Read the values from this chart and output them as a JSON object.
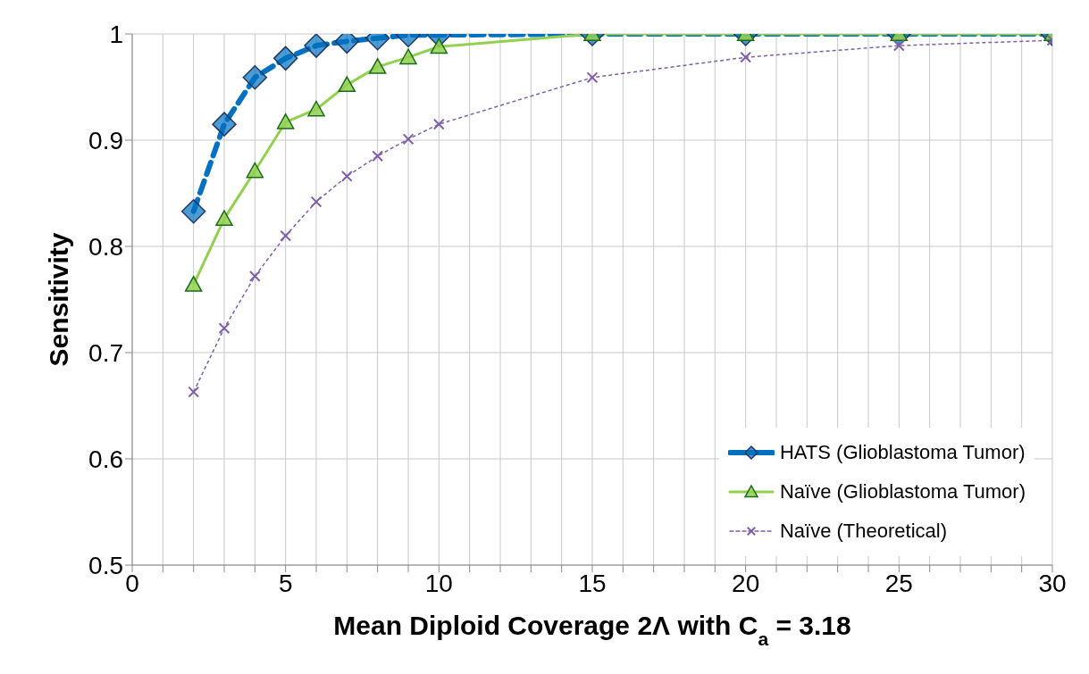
{
  "chart_data": {
    "type": "line",
    "xlabel": "Mean Diploid Coverage 2Λ with C$_{a}$ = 3.18",
    "ylabel": "Sensitivity",
    "x": [
      2,
      3,
      4,
      5,
      6,
      7,
      8,
      9,
      10,
      15,
      20,
      25,
      30
    ],
    "series": [
      {
        "name": "HATS (Glioblastoma Tumor)",
        "color": "#0070c0",
        "marker": "diamond",
        "line_style": "dashed",
        "values": [
          0.833,
          0.915,
          0.959,
          0.977,
          0.989,
          0.993,
          0.996,
          0.999,
          0.999,
          1,
          1,
          1,
          1
        ]
      },
      {
        "name": "Naïve (Glioblastoma Tumor)",
        "color": "#92d050",
        "marker": "triangle",
        "line_style": "solid",
        "values": [
          0.764,
          0.826,
          0.871,
          0.917,
          0.929,
          0.952,
          0.969,
          0.978,
          0.988,
          1,
          1,
          1,
          1
        ]
      },
      {
        "name": "Naïve (Theoretical)",
        "color": "#7f5fa8",
        "marker": "cross",
        "line_style": "dotted",
        "values": [
          0.663,
          0.723,
          0.772,
          0.81,
          0.842,
          0.866,
          0.885,
          0.901,
          0.915,
          0.959,
          0.978,
          0.989,
          0.994
        ]
      }
    ],
    "xlim": [
      0,
      30
    ],
    "xticks": [
      0,
      {
        "value": 1,
        "label": null
      },
      {
        "value": 2,
        "label": null
      },
      {
        "value": 3,
        "label": null
      },
      {
        "value": 4,
        "label": null
      },
      5,
      {
        "value": 6,
        "label": null
      },
      {
        "value": 7,
        "label": null
      },
      {
        "value": 8,
        "label": null
      },
      {
        "value": 9,
        "label": null
      },
      10,
      {
        "value": 11,
        "label": null
      },
      {
        "value": 12,
        "label": null
      },
      {
        "value": 13,
        "label": null
      },
      {
        "value": 14,
        "label": null
      },
      15,
      {
        "value": 16,
        "label": null
      },
      {
        "value": 17,
        "label": null
      },
      {
        "value": 18,
        "label": null
      },
      {
        "value": 19,
        "label": null
      },
      20,
      {
        "value": 21,
        "label": null
      },
      {
        "value": 22,
        "label": null
      },
      {
        "value": 23,
        "label": null
      },
      {
        "value": 24,
        "label": null
      },
      25,
      {
        "value": 26,
        "label": null
      },
      {
        "value": 27,
        "label": null
      },
      {
        "value": 28,
        "label": null
      },
      {
        "value": 29,
        "label": null
      },
      30
    ],
    "ylim": [
      0.5,
      1
    ],
    "yticks": [
      0.5,
      0.6,
      0.7,
      0.8,
      0.9,
      1
    ],
    "grid": true,
    "legend": "bottom right"
  }
}
